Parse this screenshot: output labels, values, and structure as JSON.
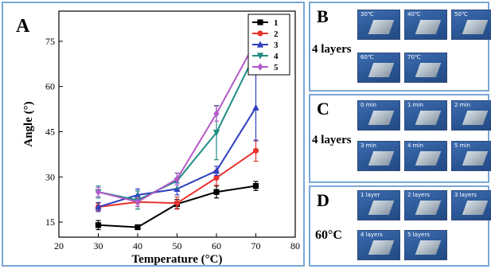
{
  "panels": {
    "a_label": "A",
    "b_label": "B",
    "c_label": "C",
    "d_label": "D",
    "b_side": "4 layers",
    "c_side": "4 layers",
    "d_side": "60°C",
    "b_thumbs": [
      "30℃",
      "40℃",
      "50℃",
      "60℃",
      "70℃"
    ],
    "c_thumbs": [
      "0 min",
      "1 min",
      "2 min",
      "3 min",
      "4 min",
      "5 min"
    ],
    "d_thumbs": [
      "1 layer",
      "2 layers",
      "3 layers",
      "4 layers",
      "5 layers"
    ]
  },
  "chart_data": {
    "type": "line",
    "title": "",
    "xlabel": "Temperature (°C)",
    "ylabel": "Angle (°)",
    "xlim": [
      20,
      80
    ],
    "ylim": [
      10,
      85
    ],
    "xticks": [
      20,
      30,
      40,
      50,
      60,
      70,
      80
    ],
    "yticks": [
      15,
      30,
      45,
      60,
      75
    ],
    "x": [
      30,
      40,
      50,
      60,
      70
    ],
    "legend_position": "top-right",
    "grid": false,
    "series": [
      {
        "name": "1",
        "color": "#000000",
        "marker": "square",
        "values": [
          14,
          13.3,
          21,
          25,
          27
        ],
        "errors": [
          1.5,
          0.8,
          1.5,
          2.0,
          1.5
        ]
      },
      {
        "name": "2",
        "color": "#e8322c",
        "marker": "circle",
        "values": [
          20,
          21.7,
          21.3,
          29.7,
          38.7
        ],
        "errors": [
          1.2,
          1.5,
          2.0,
          2.5,
          3.5
        ]
      },
      {
        "name": "3",
        "color": "#2e3fbf",
        "marker": "triangle-up",
        "values": [
          20,
          24,
          26,
          32,
          53
        ],
        "errors": [
          1.5,
          2.0,
          2.0,
          1.5,
          11.0
        ]
      },
      {
        "name": "4",
        "color": "#1f8c83",
        "marker": "triangle-down",
        "values": [
          25,
          22.3,
          28.7,
          44.7,
          71.3
        ],
        "errors": [
          2.0,
          3.0,
          2.5,
          9.0,
          4.0
        ]
      },
      {
        "name": "5",
        "color": "#b25ac8",
        "marker": "diamond",
        "values": [
          25,
          21.7,
          29.3,
          51,
          75
        ],
        "errors": [
          1.5,
          1.5,
          2.0,
          2.5,
          3.0
        ]
      }
    ]
  }
}
